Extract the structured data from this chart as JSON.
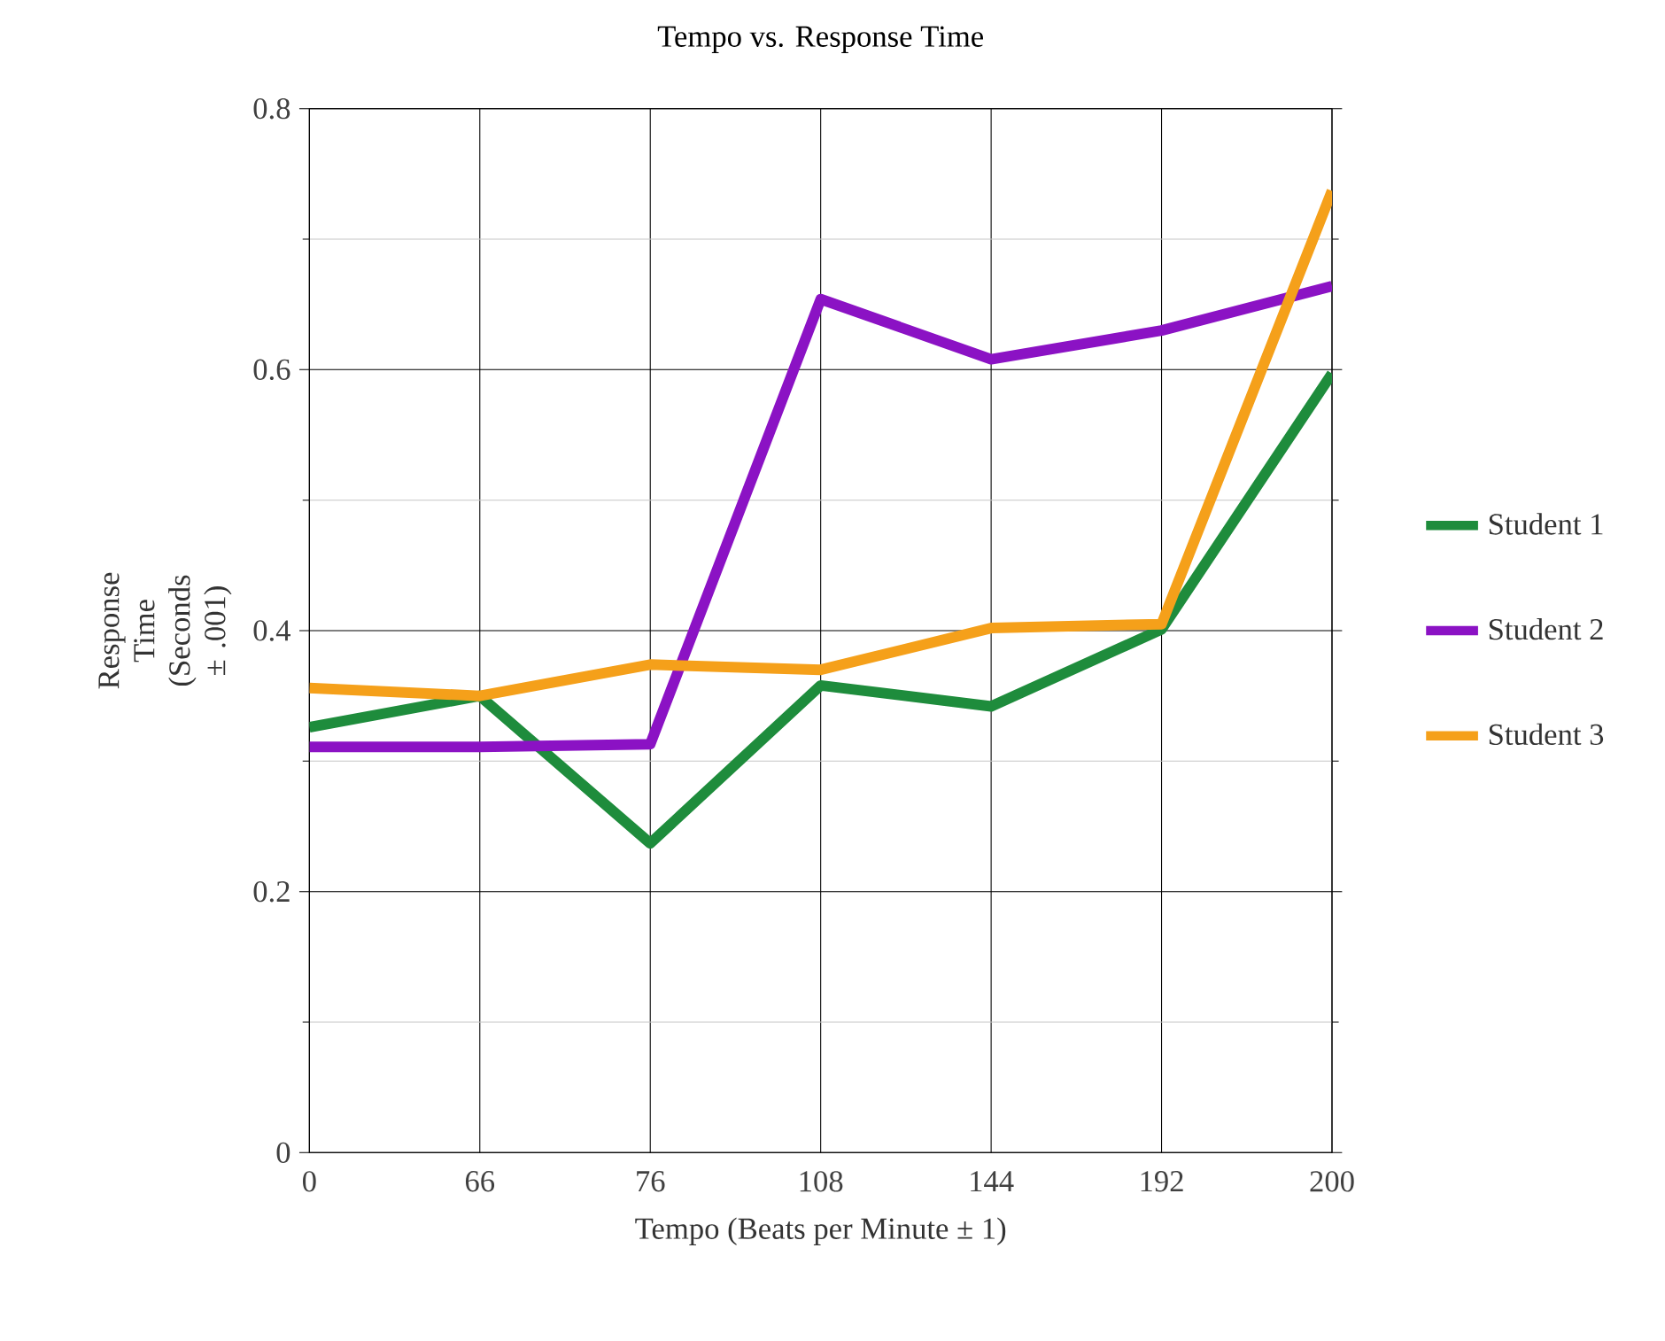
{
  "chart_data": {
    "type": "line",
    "title": "Tempo vs. Response Time",
    "xlabel": "Tempo (Beats per Minute ± 1)",
    "ylabel": "Response Time (Seconds ± .001)",
    "categories": [
      "0",
      "66",
      "76",
      "108",
      "144",
      "192",
      "200"
    ],
    "series": [
      {
        "name": "Student 1",
        "color": "#1e8c3c",
        "values": [
          0.326,
          0.35,
          0.237,
          0.358,
          0.342,
          0.401,
          0.597
        ]
      },
      {
        "name": "Student 2",
        "color": "#8b12c4",
        "values": [
          0.311,
          0.311,
          0.313,
          0.654,
          0.608,
          0.63,
          0.664
        ]
      },
      {
        "name": "Student 3",
        "color": "#f5a01a",
        "values": [
          0.356,
          0.35,
          0.374,
          0.37,
          0.402,
          0.405,
          0.737
        ]
      }
    ],
    "ylim": [
      0,
      0.8
    ],
    "yticks": [
      0,
      {
        "value": 0.1,
        "label": null
      },
      0.2,
      {
        "value": 0.3,
        "label": null
      },
      0.4,
      {
        "value": 0.5,
        "label": null
      },
      0.6,
      {
        "value": 0.7,
        "label": null
      },
      0.8
    ],
    "grid": true,
    "legend": "right",
    "marker": "none",
    "line_style": "solid"
  }
}
